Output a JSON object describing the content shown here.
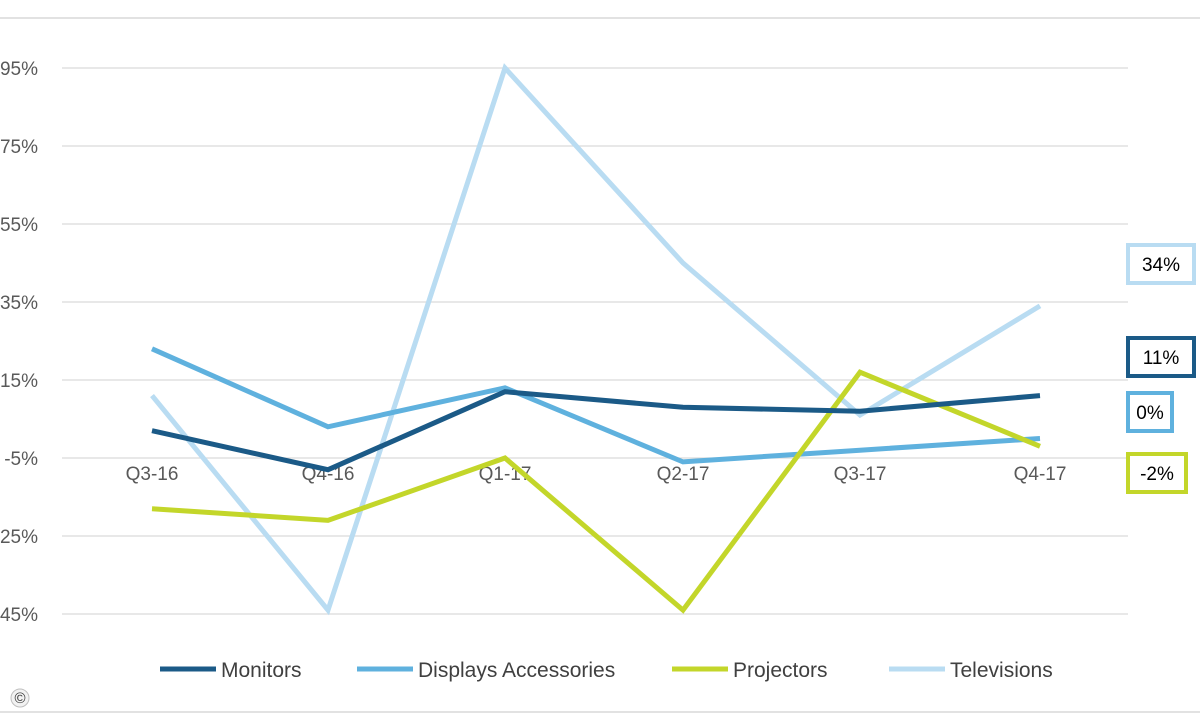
{
  "chart_data": {
    "type": "line",
    "title": "",
    "xlabel": "",
    "ylabel": "",
    "ylim": [
      -45,
      95
    ],
    "y_ticks": [
      95,
      75,
      55,
      35,
      15,
      -5,
      -25,
      -45
    ],
    "y_tick_labels": [
      "95%",
      "75%",
      "55%",
      "35%",
      "15%",
      "-5%",
      "-25%",
      "-45%"
    ],
    "categories": [
      "Q3-16",
      "Q4-16",
      "Q1-17",
      "Q2-17",
      "Q3-17",
      "Q4-17"
    ],
    "grid": true,
    "legend_position": "bottom",
    "series": [
      {
        "name": "Monitors",
        "color": "#1b5a87",
        "values": [
          2,
          -8,
          12,
          8,
          7,
          11
        ],
        "end_label": "11%"
      },
      {
        "name": "Displays Accessories",
        "color": "#5fb1de",
        "values": [
          23,
          3,
          13,
          -6,
          -3,
          0
        ],
        "end_label": "0%"
      },
      {
        "name": "Projectors",
        "color": "#c3d62a",
        "values": [
          -18,
          -21,
          -5,
          -44,
          17,
          -2
        ],
        "end_label": "-2%"
      },
      {
        "name": "Televisions",
        "color": "#b9dcf2",
        "values": [
          11,
          -44,
          95,
          45,
          6,
          34
        ],
        "end_label": "34%"
      }
    ]
  },
  "footer": {
    "copyright_symbol": "©"
  }
}
